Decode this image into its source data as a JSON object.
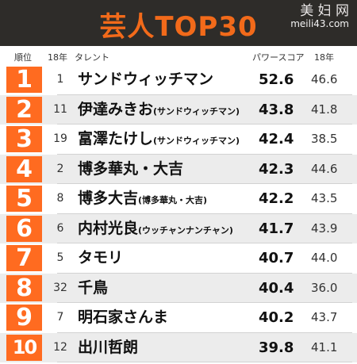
{
  "title": "芸人TOP30",
  "watermark": {
    "top": "美 妇 网",
    "bottom": "meili43.com"
  },
  "header": {
    "rank": "順位",
    "last_year_rank": "18年",
    "talent": "タレント",
    "power_score": "パワースコア",
    "last_year_score": "18年"
  },
  "rows": [
    {
      "rank": "1",
      "last_year_rank": "1",
      "name": "サンドウィッチマン",
      "sub": "",
      "score": "52.6",
      "last_year_score": "46.6"
    },
    {
      "rank": "2",
      "last_year_rank": "11",
      "name": "伊達みきお",
      "sub": "(サンドウィッチマン)",
      "score": "43.8",
      "last_year_score": "41.8"
    },
    {
      "rank": "3",
      "last_year_rank": "19",
      "name": "富澤たけし",
      "sub": "(サンドウィッチマン)",
      "score": "42.4",
      "last_year_score": "38.5"
    },
    {
      "rank": "4",
      "last_year_rank": "2",
      "name": "博多華丸・大吉",
      "sub": "",
      "score": "42.3",
      "last_year_score": "44.6"
    },
    {
      "rank": "5",
      "last_year_rank": "8",
      "name": "博多大吉",
      "sub": "(博多華丸・大吉)",
      "score": "42.2",
      "last_year_score": "43.5"
    },
    {
      "rank": "6",
      "last_year_rank": "6",
      "name": "内村光良",
      "sub": "(ウッチャンナンチャン)",
      "score": "41.7",
      "last_year_score": "43.9"
    },
    {
      "rank": "7",
      "last_year_rank": "5",
      "name": "タモリ",
      "sub": "",
      "score": "40.7",
      "last_year_score": "44.0"
    },
    {
      "rank": "8",
      "last_year_rank": "32",
      "name": "千鳥",
      "sub": "",
      "score": "40.4",
      "last_year_score": "36.0"
    },
    {
      "rank": "9",
      "last_year_rank": "7",
      "name": "明石家さんま",
      "sub": "",
      "score": "40.2",
      "last_year_score": "43.7"
    },
    {
      "rank": "10",
      "last_year_rank": "12",
      "name": "出川哲朗",
      "sub": "",
      "score": "39.8",
      "last_year_score": "41.1"
    }
  ],
  "colors": {
    "accent": "#ff6b20",
    "title": "#f26a1a",
    "title_bg": "#2e2c29",
    "shaded_row": "#ececec"
  }
}
